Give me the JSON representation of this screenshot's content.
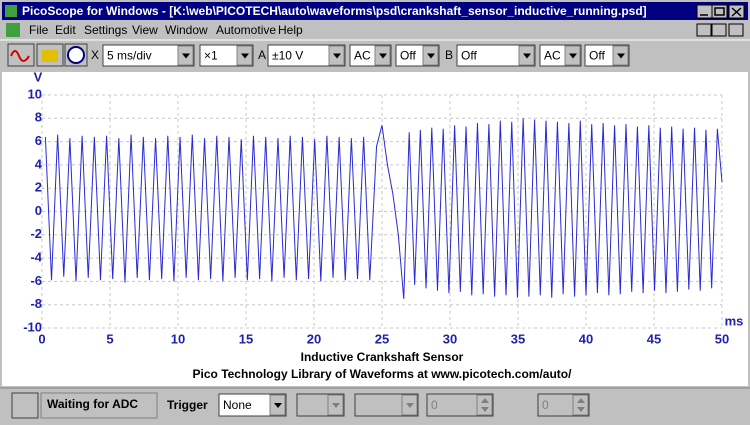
{
  "window": {
    "title": "PicoScope for Windows - [K:\\web\\PICOTECH\\auto\\waveforms\\psd\\crankshaft_sensor_inductive_running.psd]"
  },
  "menu": [
    "File",
    "Edit",
    "Settings",
    "View",
    "Window",
    "Automotive",
    "Help"
  ],
  "toolbar": {
    "x_label": "X",
    "timebase": "5 ms/div",
    "multiplier": "×1",
    "channel_a_label": "A",
    "range_a": "±10 V",
    "coupling_a": "AC",
    "option_a": "Off",
    "channel_b_label": "B",
    "range_b": "Off",
    "coupling_b": "AC",
    "option_b": "Off"
  },
  "chart_data": {
    "type": "line",
    "title": "Inductive Crankshaft Sensor",
    "subtitle": "Pico Technology Library of Waveforms at www.picotech.com/auto/",
    "x_label": "ms",
    "y_label": "V",
    "xlim": [
      0,
      50
    ],
    "xticks": [
      0,
      5,
      10,
      15,
      20,
      25,
      30,
      35,
      40,
      45,
      50
    ],
    "ylim": [
      -10,
      10
    ],
    "yticks": [
      -10,
      -8,
      -6,
      -4,
      -2,
      0,
      2,
      4,
      6,
      8,
      10
    ],
    "grid": true,
    "x": [
      0.25,
      0.7,
      1.15,
      1.6,
      2.05,
      2.5,
      2.95,
      3.4,
      3.85,
      4.3,
      4.75,
      5.2,
      5.65,
      6.1,
      6.55,
      7.0,
      7.45,
      7.9,
      8.35,
      8.8,
      9.25,
      9.7,
      10.15,
      10.6,
      11.05,
      11.5,
      11.95,
      12.4,
      12.85,
      13.3,
      13.75,
      14.2,
      14.65,
      15.1,
      15.55,
      16.0,
      16.45,
      16.9,
      17.35,
      17.8,
      18.25,
      18.7,
      19.15,
      19.6,
      20.05,
      20.5,
      20.95,
      21.4,
      21.85,
      22.3,
      22.75,
      23.2,
      23.65,
      24.1,
      24.6,
      25.0,
      25.4,
      25.8,
      26.2,
      26.6,
      27.0,
      27.4,
      27.82,
      28.24,
      28.66,
      29.08,
      29.5,
      29.92,
      30.34,
      30.76,
      31.18,
      31.6,
      32.02,
      32.44,
      32.86,
      33.28,
      33.7,
      34.12,
      34.54,
      34.96,
      35.38,
      35.8,
      36.22,
      36.64,
      37.06,
      37.48,
      37.9,
      38.32,
      38.74,
      39.16,
      39.58,
      40.0,
      40.42,
      40.84,
      41.26,
      41.68,
      42.1,
      42.52,
      42.94,
      43.36,
      43.78,
      44.2,
      44.62,
      45.04,
      45.46,
      45.88,
      46.3,
      46.72,
      47.14,
      47.56,
      47.98,
      48.4,
      48.82,
      49.24,
      49.66,
      50.0
    ],
    "series": [
      {
        "color": "#2a2ad2",
        "values": [
          6.4,
          -5.9,
          6.6,
          -5.6,
          6.3,
          -6.0,
          6.5,
          -5.7,
          6.4,
          -5.9,
          6.5,
          -5.8,
          6.3,
          -6.1,
          6.6,
          -5.7,
          6.4,
          -5.9,
          6.3,
          -5.8,
          6.5,
          -6.0,
          6.4,
          -5.7,
          6.6,
          -5.9,
          6.3,
          -5.8,
          6.5,
          -6.0,
          6.4,
          -5.7,
          6.2,
          -5.9,
          6.5,
          -5.8,
          6.4,
          -6.0,
          6.3,
          -5.7,
          6.5,
          -5.9,
          6.4,
          -5.8,
          6.2,
          -6.0,
          6.5,
          -5.7,
          6.4,
          -5.9,
          6.3,
          -5.8,
          6.4,
          -5.9,
          5.6,
          7.4,
          4.0,
          1.5,
          -2.0,
          -7.5,
          6.8,
          -6.3,
          7.0,
          -6.6,
          7.2,
          -6.8,
          7.1,
          -7.0,
          7.4,
          -6.9,
          7.3,
          -7.2,
          7.6,
          -7.1,
          7.5,
          -7.3,
          7.8,
          -7.2,
          7.7,
          -7.4,
          8.0,
          -7.3,
          7.9,
          -7.2,
          7.8,
          -7.4,
          7.7,
          -7.1,
          7.6,
          -7.3,
          7.8,
          -7.2,
          7.5,
          -7.0,
          7.6,
          -7.2,
          7.4,
          -7.1,
          7.5,
          -6.9,
          7.3,
          -7.0,
          7.4,
          -6.8,
          7.2,
          -7.0,
          7.3,
          -6.9,
          7.1,
          -6.7,
          7.2,
          -6.8,
          7.0,
          -6.6,
          7.1,
          2.5
        ]
      }
    ]
  },
  "status": {
    "text": "Waiting for ADC",
    "trigger_label": "Trigger",
    "trigger_mode": "None",
    "value_1": "0",
    "value_2": "0"
  }
}
